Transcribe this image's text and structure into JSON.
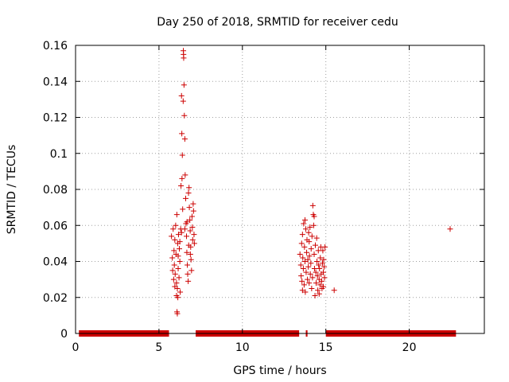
{
  "chart_data": {
    "type": "scatter",
    "title": "Day 250 of 2018, SRMTID for receiver cedu",
    "xlabel": "GPS time / hours",
    "ylabel": "SRMTID / TECUs",
    "xlim": [
      0,
      24.5
    ],
    "ylim": [
      0,
      0.16
    ],
    "x_ticks": [
      0,
      5,
      10,
      15,
      20
    ],
    "x_tick_labels": [
      "0",
      "5",
      "10",
      "15",
      "20"
    ],
    "y_ticks": [
      0,
      0.02,
      0.04,
      0.06,
      0.08,
      0.1,
      0.12,
      0.14,
      0.16
    ],
    "y_tick_labels": [
      "0",
      "0.02",
      "0.04",
      "0.06",
      "0.08",
      "0.1",
      "0.12",
      "0.14",
      "0.16"
    ],
    "grid": true,
    "marker": "+",
    "color": "#cc0000",
    "zero_bands": [
      [
        0.2,
        5.6
      ],
      [
        7.2,
        13.4
      ],
      [
        13.8,
        13.9
      ],
      [
        15.0,
        22.8
      ]
    ],
    "series": [
      {
        "name": "SRMTID",
        "points": [
          [
            5.75,
            0.054
          ],
          [
            5.8,
            0.042
          ],
          [
            5.82,
            0.035
          ],
          [
            5.85,
            0.058
          ],
          [
            5.88,
            0.03
          ],
          [
            5.9,
            0.046
          ],
          [
            5.92,
            0.038
          ],
          [
            5.95,
            0.052
          ],
          [
            5.97,
            0.033
          ],
          [
            6.0,
            0.06
          ],
          [
            6.02,
            0.044
          ],
          [
            6.05,
            0.028
          ],
          [
            6.07,
            0.066
          ],
          [
            6.08,
            0.012
          ],
          [
            6.1,
            0.025
          ],
          [
            6.12,
            0.05
          ],
          [
            6.13,
            0.02
          ],
          [
            6.15,
            0.036
          ],
          [
            6.17,
            0.055
          ],
          [
            6.2,
            0.031
          ],
          [
            6.22,
            0.047
          ],
          [
            6.25,
            0.04
          ],
          [
            6.27,
            0.023
          ],
          [
            6.3,
            0.058
          ],
          [
            6.32,
            0.082
          ],
          [
            6.35,
            0.132
          ],
          [
            6.37,
            0.111
          ],
          [
            6.38,
            0.086
          ],
          [
            6.4,
            0.099
          ],
          [
            6.42,
            0.069
          ],
          [
            6.45,
            0.129
          ],
          [
            6.46,
            0.157
          ],
          [
            6.47,
            0.155
          ],
          [
            6.48,
            0.153
          ],
          [
            6.5,
            0.138
          ],
          [
            6.52,
            0.121
          ],
          [
            6.55,
            0.108
          ],
          [
            6.57,
            0.088
          ],
          [
            6.6,
            0.075
          ],
          [
            6.62,
            0.061
          ],
          [
            6.65,
            0.054
          ],
          [
            6.67,
            0.045
          ],
          [
            6.7,
            0.038
          ],
          [
            6.72,
            0.033
          ],
          [
            6.75,
            0.029
          ],
          [
            6.77,
            0.078
          ],
          [
            6.8,
            0.081
          ],
          [
            6.82,
            0.07
          ],
          [
            6.85,
            0.063
          ],
          [
            6.87,
            0.057
          ],
          [
            6.9,
            0.048
          ],
          [
            6.92,
            0.041
          ],
          [
            6.95,
            0.035
          ],
          [
            6.98,
            0.065
          ],
          [
            7.0,
            0.059
          ],
          [
            7.02,
            0.052
          ],
          [
            7.05,
            0.072
          ],
          [
            7.07,
            0.068
          ],
          [
            7.1,
            0.055
          ],
          [
            7.12,
            0.05
          ],
          [
            6.1,
            0.011
          ],
          [
            6.05,
            0.021
          ],
          [
            5.95,
            0.026
          ],
          [
            6.15,
            0.043
          ],
          [
            6.25,
            0.051
          ],
          [
            6.35,
            0.056
          ],
          [
            6.55,
            0.058
          ],
          [
            6.68,
            0.062
          ],
          [
            6.78,
            0.049
          ],
          [
            6.88,
            0.044
          ],
          [
            13.45,
            0.044
          ],
          [
            13.5,
            0.038
          ],
          [
            13.52,
            0.032
          ],
          [
            13.55,
            0.05
          ],
          [
            13.57,
            0.029
          ],
          [
            13.6,
            0.055
          ],
          [
            13.62,
            0.042
          ],
          [
            13.65,
            0.036
          ],
          [
            13.67,
            0.061
          ],
          [
            13.7,
            0.027
          ],
          [
            13.72,
            0.048
          ],
          [
            13.75,
            0.04
          ],
          [
            13.77,
            0.023
          ],
          [
            13.8,
            0.058
          ],
          [
            13.82,
            0.034
          ],
          [
            13.85,
            0.045
          ],
          [
            13.87,
            0.052
          ],
          [
            13.9,
            0.03
          ],
          [
            13.92,
            0.041
          ],
          [
            13.95,
            0.037
          ],
          [
            13.97,
            0.056
          ],
          [
            14.0,
            0.028
          ],
          [
            14.02,
            0.043
          ],
          [
            14.05,
            0.059
          ],
          [
            14.07,
            0.033
          ],
          [
            14.1,
            0.039
          ],
          [
            14.12,
            0.047
          ],
          [
            14.15,
            0.025
          ],
          [
            14.17,
            0.054
          ],
          [
            14.2,
            0.031
          ],
          [
            14.22,
            0.071
          ],
          [
            14.25,
            0.066
          ],
          [
            14.27,
            0.06
          ],
          [
            14.3,
            0.044
          ],
          [
            14.32,
            0.036
          ],
          [
            14.35,
            0.021
          ],
          [
            14.37,
            0.049
          ],
          [
            14.4,
            0.034
          ],
          [
            14.42,
            0.028
          ],
          [
            14.45,
            0.053
          ],
          [
            14.47,
            0.04
          ],
          [
            14.5,
            0.032
          ],
          [
            14.52,
            0.024
          ],
          [
            14.55,
            0.046
          ],
          [
            14.57,
            0.038
          ],
          [
            14.6,
            0.03
          ],
          [
            14.62,
            0.036
          ],
          [
            14.65,
            0.027
          ],
          [
            14.67,
            0.042
          ],
          [
            14.7,
            0.048
          ],
          [
            14.72,
            0.033
          ],
          [
            14.75,
            0.029
          ],
          [
            14.77,
            0.025
          ],
          [
            14.8,
            0.039
          ],
          [
            14.82,
            0.046
          ],
          [
            14.85,
            0.034
          ],
          [
            14.87,
            0.041
          ],
          [
            14.9,
            0.037
          ],
          [
            14.92,
            0.031
          ],
          [
            14.95,
            0.048
          ],
          [
            13.6,
            0.024
          ],
          [
            13.75,
            0.063
          ],
          [
            14.0,
            0.051
          ],
          [
            14.3,
            0.065
          ],
          [
            14.6,
            0.022
          ],
          [
            14.85,
            0.026
          ],
          [
            15.5,
            0.024
          ],
          [
            22.45,
            0.058
          ]
        ]
      }
    ]
  }
}
